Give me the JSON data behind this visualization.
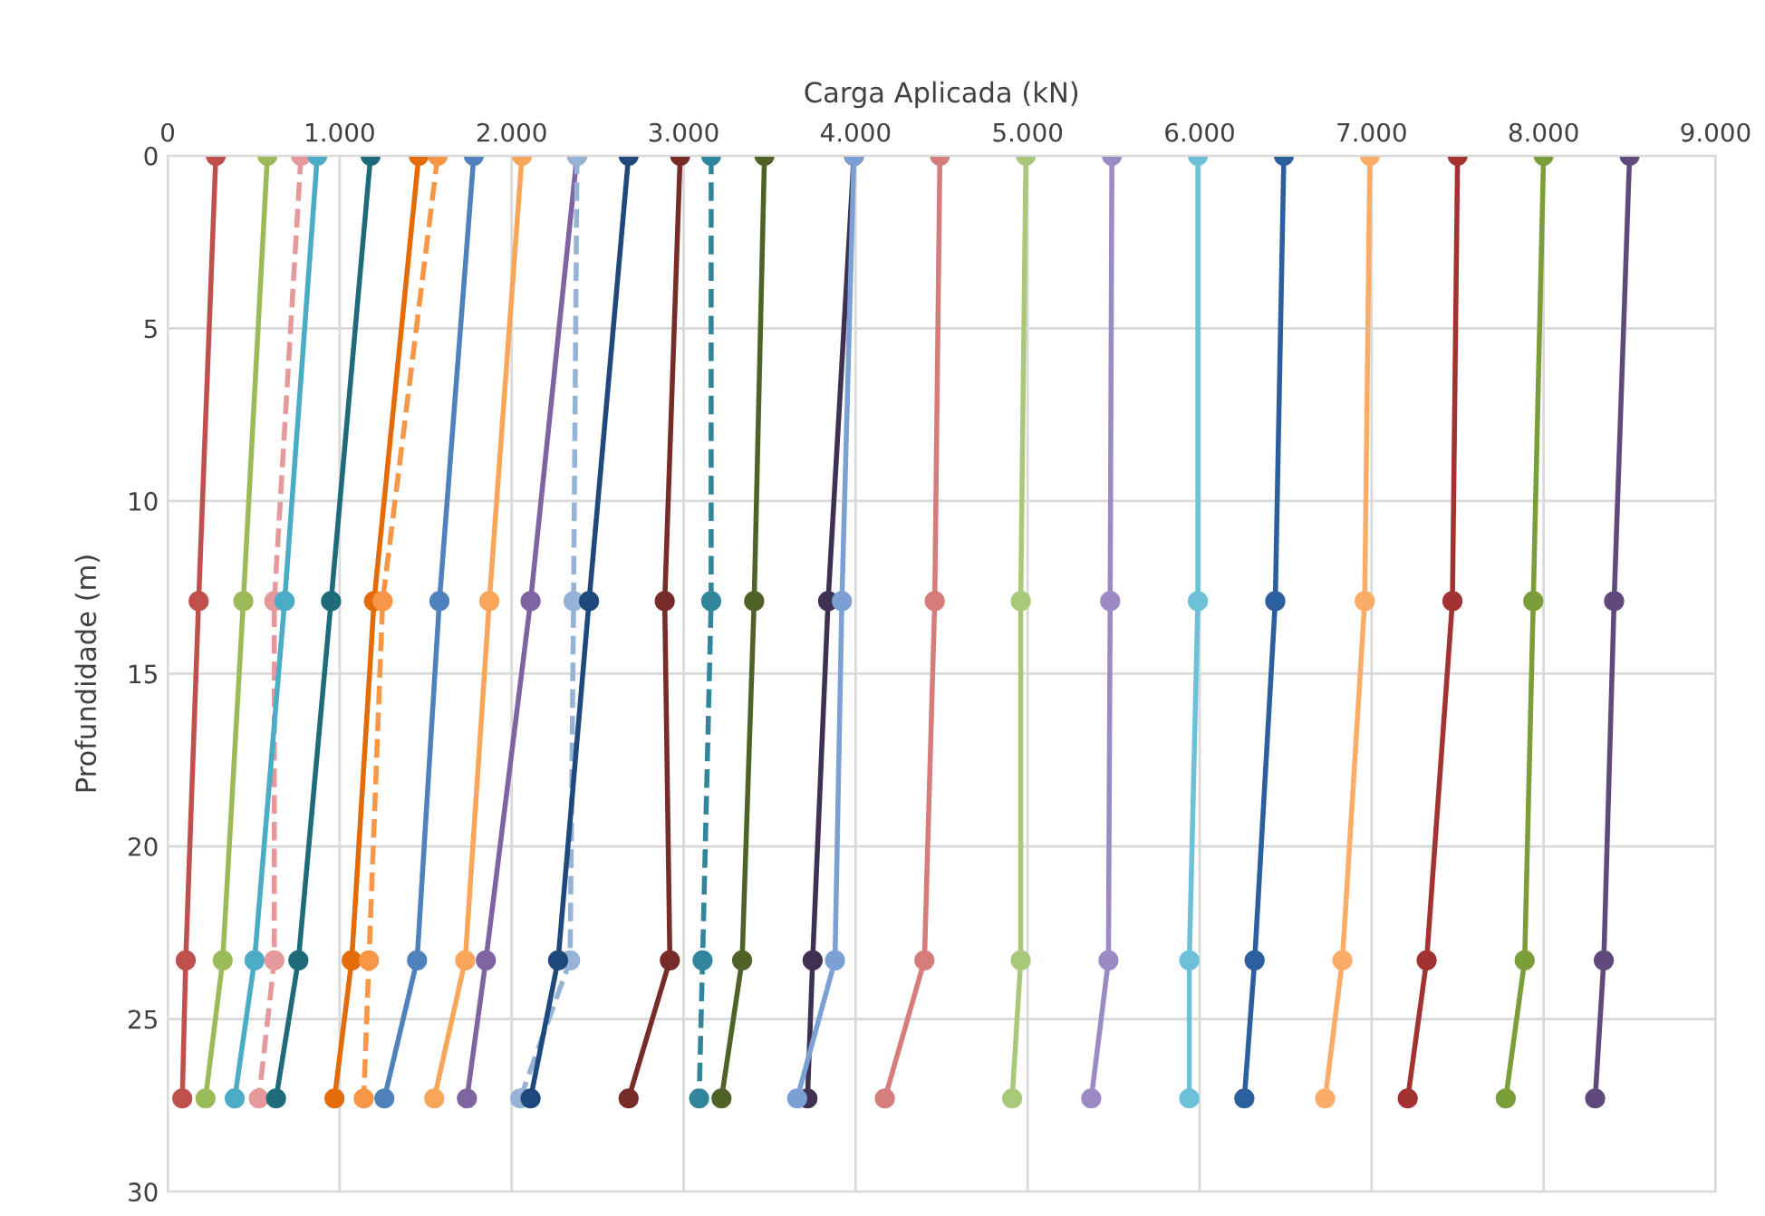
{
  "chart_data": {
    "type": "line",
    "xlabel": "Carga Aplicada (kN)",
    "ylabel": "Profundidade (m)",
    "xlim": [
      0,
      9000
    ],
    "ylim": [
      30,
      0
    ],
    "xticks": [
      0,
      {
        "value": 1000,
        "label": "1.000"
      },
      {
        "value": 2000,
        "label": "2.000"
      },
      {
        "value": 3000,
        "label": "3.000"
      },
      {
        "value": 4000,
        "label": "4.000"
      },
      {
        "value": 5000,
        "label": "5.000"
      },
      {
        "value": 6000,
        "label": "6.000"
      },
      {
        "value": 7000,
        "label": "7.000"
      },
      {
        "value": 8000,
        "label": "8.000"
      },
      {
        "value": 9000,
        "label": "9.000"
      }
    ],
    "yticks": [
      0,
      5,
      10,
      15,
      20,
      25,
      30
    ],
    "grid": true,
    "legend": false,
    "marker": "circle",
    "series": [
      {
        "color": "#c0504d",
        "x": [
          280,
          180,
          105,
          85
        ],
        "values": [
          0,
          12.9,
          23.3,
          27.3
        ]
      },
      {
        "color": "#9bbb59",
        "x": [
          580,
          440,
          320,
          220
        ],
        "values": [
          0,
          12.9,
          23.3,
          27.3
        ]
      },
      {
        "color": "#e6999a",
        "line_style": "dashed",
        "x": [
          775,
          620,
          620,
          530
        ],
        "values": [
          0,
          12.9,
          23.3,
          27.3
        ]
      },
      {
        "color": "#4bacc6",
        "x": [
          870,
          680,
          505,
          390
        ],
        "values": [
          0,
          12.9,
          23.3,
          27.3
        ]
      },
      {
        "color": "#1f6b7a",
        "x": [
          1180,
          950,
          760,
          630
        ],
        "values": [
          0,
          12.9,
          23.3,
          27.3
        ]
      },
      {
        "color": "#e36c09",
        "x": [
          1460,
          1200,
          1070,
          970
        ],
        "values": [
          0,
          12.9,
          23.3,
          27.3
        ]
      },
      {
        "color": "#f79646",
        "line_style": "dashed",
        "x": [
          1570,
          1250,
          1170,
          1140
        ],
        "values": [
          0,
          12.9,
          23.3,
          27.3
        ]
      },
      {
        "color": "#4f81bd",
        "x": [
          1780,
          1580,
          1450,
          1260
        ],
        "values": [
          0,
          12.9,
          23.3,
          27.3
        ]
      },
      {
        "color": "#f9a65a",
        "x": [
          2060,
          1870,
          1730,
          1550
        ],
        "values": [
          0,
          12.9,
          23.3,
          27.3
        ]
      },
      {
        "color": "#8064a2",
        "x": [
          2380,
          2110,
          1850,
          1740
        ],
        "values": [
          0,
          12.9,
          23.3,
          27.3
        ]
      },
      {
        "color": "#95b3d7",
        "line_style": "dashed",
        "x": [
          2380,
          2360,
          2340,
          2050
        ],
        "values": [
          0,
          12.9,
          23.3,
          27.3
        ]
      },
      {
        "color": "#1f497d",
        "x": [
          2680,
          2450,
          2270,
          2110
        ],
        "values": [
          0,
          12.9,
          23.3,
          27.3
        ]
      },
      {
        "color": "#772c2a",
        "x": [
          2980,
          2890,
          2920,
          2680
        ],
        "values": [
          0,
          12.9,
          23.3,
          27.3
        ]
      },
      {
        "color": "#31859c",
        "line_style": "dashed",
        "x": [
          3160,
          3160,
          3110,
          3090
        ],
        "values": [
          0,
          12.9,
          23.3,
          27.3
        ]
      },
      {
        "color": "#4f6228",
        "x": [
          3470,
          3410,
          3340,
          3220
        ],
        "values": [
          0,
          12.9,
          23.3,
          27.3
        ]
      },
      {
        "color": "#3f3151",
        "x": [
          3990,
          3840,
          3750,
          3720
        ],
        "values": [
          0,
          12.9,
          23.3,
          27.3
        ]
      },
      {
        "color": "#7ba0d4",
        "x": [
          3990,
          3920,
          3880,
          3660
        ],
        "values": [
          0,
          12.9,
          23.3,
          27.3
        ]
      },
      {
        "color": "#d47d7a",
        "x": [
          4490,
          4460,
          4400,
          4170
        ],
        "values": [
          0,
          12.9,
          23.3,
          27.3
        ]
      },
      {
        "color": "#a9c97a",
        "x": [
          4990,
          4960,
          4960,
          4910
        ],
        "values": [
          0,
          12.9,
          23.3,
          27.3
        ]
      },
      {
        "color": "#9c8ac4",
        "x": [
          5490,
          5480,
          5470,
          5370
        ],
        "values": [
          0,
          12.9,
          23.3,
          27.3
        ]
      },
      {
        "color": "#6cc0d8",
        "x": [
          5990,
          5990,
          5940,
          5940
        ],
        "values": [
          0,
          12.9,
          23.3,
          27.3
        ]
      },
      {
        "color": "#2c5f9e",
        "x": [
          6490,
          6440,
          6320,
          6260
        ],
        "values": [
          0,
          12.9,
          23.3,
          27.3
        ]
      },
      {
        "color": "#fbac66",
        "x": [
          6990,
          6960,
          6830,
          6730
        ],
        "values": [
          0,
          12.9,
          23.3,
          27.3
        ]
      },
      {
        "color": "#a33232",
        "x": [
          7500,
          7470,
          7320,
          7210
        ],
        "values": [
          0,
          12.9,
          23.3,
          27.3
        ]
      },
      {
        "color": "#7a9e3a",
        "x": [
          8000,
          7940,
          7890,
          7780
        ],
        "values": [
          0,
          12.9,
          23.3,
          27.3
        ]
      },
      {
        "color": "#604a7b",
        "x": [
          8500,
          8410,
          8350,
          8300
        ],
        "values": [
          0,
          12.9,
          23.3,
          27.3
        ]
      }
    ]
  }
}
